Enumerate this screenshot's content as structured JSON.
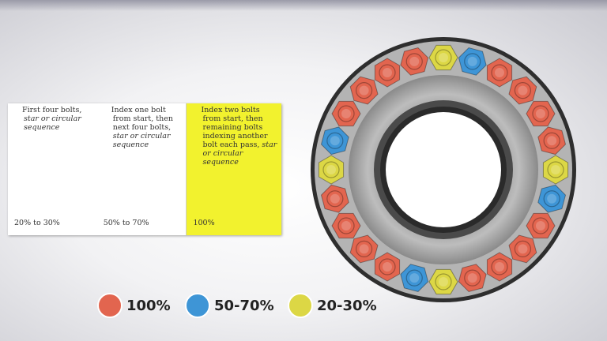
{
  "table": {
    "columns": [
      {
        "text": "First four bolts, ",
        "italic": "star or circular sequence",
        "percent": "20% to 30%"
      },
      {
        "text": "Index one bolt from start, then next four bolts, ",
        "italic": "star or circular sequence",
        "percent": "50% to 70%"
      },
      {
        "text": "Index two bolts from start, then remaining bolts indexing another bolt each pass, ",
        "italic": "star or circular sequence",
        "percent": "100%"
      }
    ]
  },
  "legend": [
    {
      "label": "100%",
      "color": "#e2654f"
    },
    {
      "label": "50-70%",
      "color": "#3e95d6"
    },
    {
      "label": "20-30%",
      "color": "#dcd745"
    }
  ]
}
